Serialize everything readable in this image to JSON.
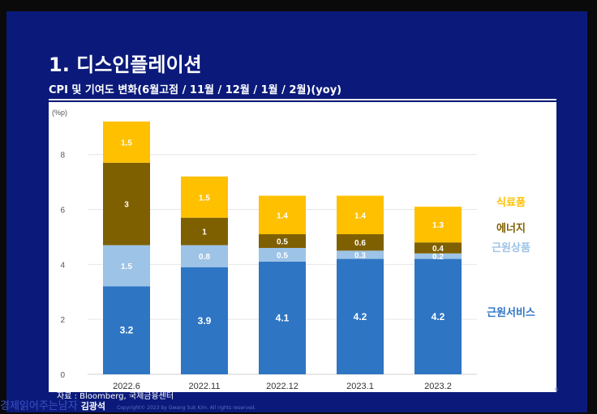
{
  "slide": {
    "title": "1. 디스인플레이션",
    "subtitle": "CPI 및 기여도 변화(6월고점 / 11월 / 12월 / 1월 / 2월)(yoy)",
    "source": "자료 : Bloomberg, 국제금융센터",
    "watermark": "경제읽어주는남자",
    "author": "김광석",
    "copyright": "Copyright© 2023 by Gwang Suk Kim. All rights reserved.",
    "page_number": "6"
  },
  "colors": {
    "services": "#2e75c4",
    "goods": "#9dc3e6",
    "energy": "#7f6000",
    "food": "#ffc000",
    "slide_bg": "#0b1a7a"
  },
  "chart_data": {
    "type": "bar",
    "stacked": true,
    "categories": [
      "2022.6",
      "2022.11",
      "2022.12",
      "2023.1",
      "2023.2"
    ],
    "series": [
      {
        "name": "근원서비스",
        "values": [
          3.2,
          3.9,
          4.1,
          4.2,
          4.2
        ],
        "color": "#2e75c4",
        "label_color": "#ffffff"
      },
      {
        "name": "근원상품",
        "values": [
          1.5,
          0.8,
          0.5,
          0.3,
          0.2
        ],
        "color": "#9dc3e6",
        "label_color": "#ffffff"
      },
      {
        "name": "에너지",
        "values": [
          3,
          1,
          0.5,
          0.6,
          0.4
        ],
        "color": "#7f6000",
        "label_color": "#ffffff"
      },
      {
        "name": "식료품",
        "values": [
          1.5,
          1.5,
          1.4,
          1.4,
          1.3
        ],
        "color": "#ffc000",
        "label_color": "#ffffff"
      }
    ],
    "y_unit": "(%p)",
    "yticks": [
      0,
      2,
      4,
      6,
      8
    ],
    "ylim": [
      0,
      9.2
    ],
    "grid": true,
    "legend_position": "right",
    "legend_order": [
      "식료품",
      "에너지",
      "근원상품",
      "근원서비스"
    ],
    "legend_colors": {
      "식료품": "#ffc000",
      "에너지": "#7f6000",
      "근원상품": "#9dc3e6",
      "근원서비스": "#2e75c4"
    }
  }
}
